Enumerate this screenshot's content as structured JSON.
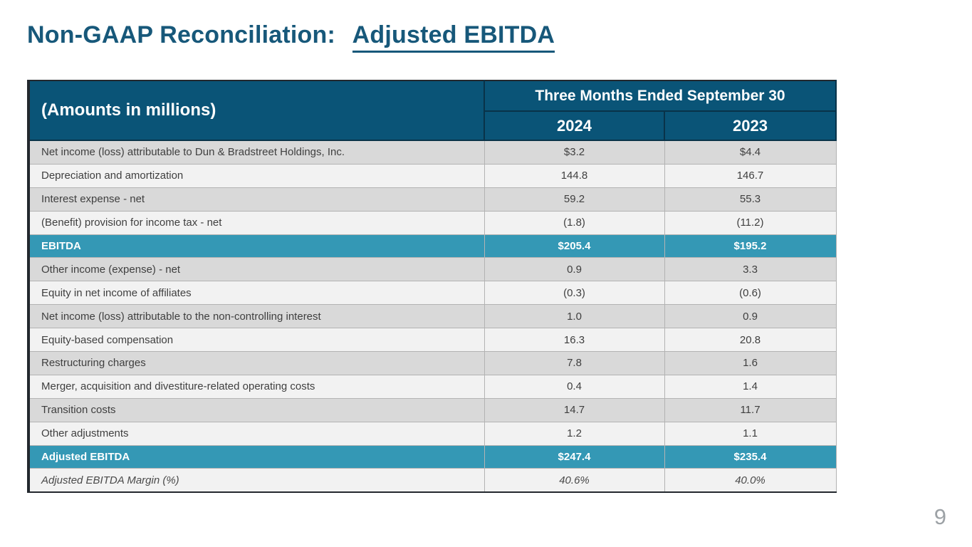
{
  "slide": {
    "title_prefix": "Non-GAAP Reconciliation: ",
    "title_emphasis": "Adjusted EBITDA",
    "page_number": "9"
  },
  "table": {
    "corner_label": "(Amounts in millions)",
    "period_header": "Three Months Ended September 30",
    "year_columns": [
      "2024",
      "2023"
    ],
    "rows": [
      {
        "label": "Net income (loss) attributable to Dun & Bradstreet Holdings, Inc.",
        "values": [
          "$3.2",
          "$4.4"
        ],
        "kind": "item"
      },
      {
        "label": "Depreciation and amortization",
        "values": [
          "144.8",
          "146.7"
        ],
        "kind": "item"
      },
      {
        "label": "Interest expense - net",
        "values": [
          "59.2",
          "55.3"
        ],
        "kind": "item"
      },
      {
        "label": "(Benefit) provision for income tax - net",
        "values": [
          "(1.8)",
          "(11.2)"
        ],
        "kind": "item"
      },
      {
        "label": "EBITDA",
        "values": [
          "$205.4",
          "$195.2"
        ],
        "kind": "subtotal"
      },
      {
        "label": "Other income (expense) - net",
        "values": [
          "0.9",
          "3.3"
        ],
        "kind": "item"
      },
      {
        "label": "Equity in net income of affiliates",
        "values": [
          "(0.3)",
          "(0.6)"
        ],
        "kind": "item"
      },
      {
        "label": "Net income (loss) attributable to the non-controlling interest",
        "values": [
          "1.0",
          "0.9"
        ],
        "kind": "item"
      },
      {
        "label": "Equity-based compensation",
        "values": [
          "16.3",
          "20.8"
        ],
        "kind": "item"
      },
      {
        "label": "Restructuring charges",
        "values": [
          "7.8",
          "1.6"
        ],
        "kind": "item"
      },
      {
        "label": "Merger, acquisition and divestiture-related operating costs",
        "values": [
          "0.4",
          "1.4"
        ],
        "kind": "item"
      },
      {
        "label": "Transition costs",
        "values": [
          "14.7",
          "11.7"
        ],
        "kind": "item"
      },
      {
        "label": "Other adjustments",
        "values": [
          "1.2",
          "1.1"
        ],
        "kind": "item"
      },
      {
        "label": "Adjusted EBITDA",
        "values": [
          "$247.4",
          "$235.4"
        ],
        "kind": "subtotal"
      },
      {
        "label": "Adjusted EBITDA Margin (%)",
        "values": [
          "40.6%",
          "40.0%"
        ],
        "kind": "margin"
      }
    ]
  },
  "colors": {
    "title": "#17587a",
    "header_bg": "#0a5477",
    "header_divider": "#093349",
    "total_row_bg": "#3498b5",
    "row_shaded": "#d9d9d9",
    "row_plain": "#f2f2f2",
    "table_frame": "#23282e",
    "cell_border": "#b3b3b3",
    "body_text": "#3f3f3f",
    "page_number": "#9da2a6"
  }
}
